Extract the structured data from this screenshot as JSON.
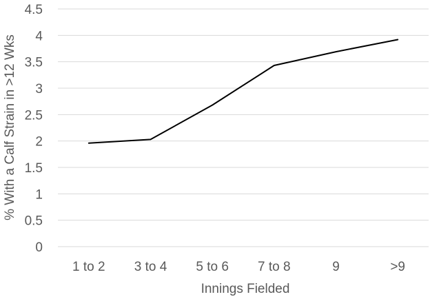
{
  "chart_data": {
    "type": "line",
    "title": "",
    "xlabel": "Innings Fielded",
    "ylabel": "% With a Calf Strain in >12 Wks",
    "categories": [
      "1 to 2",
      "3 to 4",
      "5 to 6",
      "7 to 8",
      "9",
      ">9"
    ],
    "series": [
      {
        "values": [
          1.96,
          2.03,
          2.68,
          3.43,
          3.69,
          3.92
        ],
        "color": "#000000"
      }
    ],
    "ylim": [
      0,
      4.5
    ],
    "yticks": [
      "0",
      "0.5",
      "1",
      "1.5",
      "2",
      "2.5",
      "3",
      "3.5",
      "4",
      "4.5"
    ],
    "grid": true,
    "legend": "none"
  }
}
